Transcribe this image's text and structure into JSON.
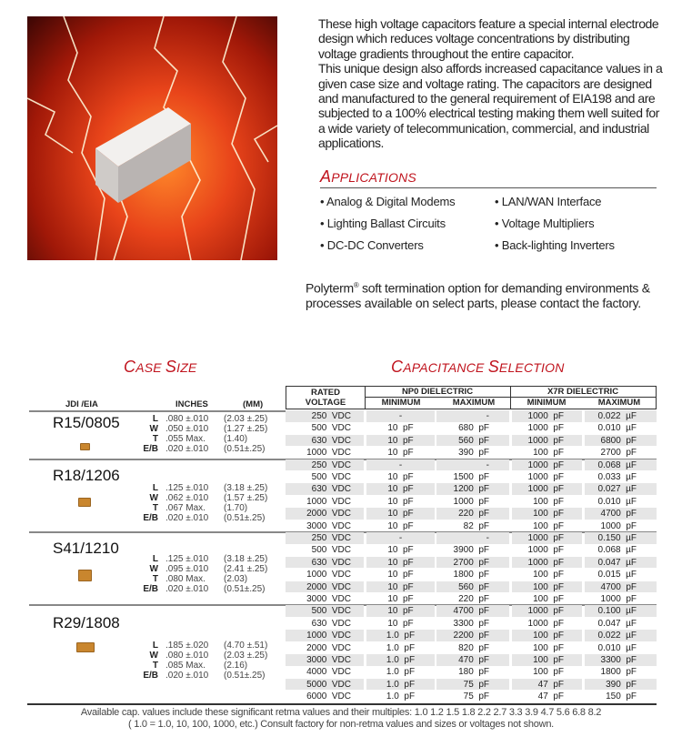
{
  "intro": {
    "paragraph1": "These high voltage capacitors feature a special internal electrode design which reduces voltage concentrations by distributing voltage gradients throughout the entire capacitor.",
    "paragraph2": "This unique design also affords increased capacitance values in a given case size and voltage rating. The capacitors are designed and manufactured to the general requirement of EIA198 and are subjected to a 100% electrical testing making them well suited for a wide variety of telecommunication, commercial, and industrial applications."
  },
  "applications": {
    "title_first": "A",
    "title_rest": "PPLICATIONS",
    "items": [
      "Analog & Digital Modems",
      "LAN/WAN Interface",
      "Lighting Ballast Circuits",
      "Voltage Multipliers",
      "DC-DC Converters",
      "Back-lighting Inverters"
    ]
  },
  "polyterm": {
    "brand": "Polyterm",
    "reg": "®",
    "text": " soft termination option for demanding environments & processes available on select parts, please contact the factory."
  },
  "case_size": {
    "title_a": "C",
    "title_b": "ASE ",
    "title_c": "S",
    "title_d": "IZE",
    "col_jdi": "JDI /EIA",
    "col_inches": "INCHES",
    "col_mm": "(MM)"
  },
  "cap_selection": {
    "title_a": "C",
    "title_b": "APACITANCE ",
    "title_c": "S",
    "title_d": "ELECTION",
    "col_rated": "RATED",
    "col_voltage": "VOLTAGE",
    "np0": "NP0 DIELECTRIC",
    "x7r": "X7R DIELECTRIC",
    "min": "MINIMUM",
    "max": "MAXIMUM"
  },
  "colors": {
    "accent_red": "#c0141e",
    "chip": "#c9862e",
    "row_shade": "#e6e6e6"
  },
  "groups": [
    {
      "name": "R15/0805",
      "dims": [
        [
          "L",
          ".080 ±.010",
          "(2.03 ±.25)"
        ],
        [
          "W",
          ".050 ±.010",
          "(1.27 ±.25)"
        ],
        [
          "T",
          ".055 Max.",
          "(1.40)"
        ],
        [
          "E/B",
          ".020 ±.010",
          "(0.51±.25)"
        ]
      ],
      "rows": [
        [
          "250  VDC",
          "-",
          "-",
          "1000  pF",
          "0.022  µF"
        ],
        [
          "500  VDC",
          "10  pF",
          "680  pF",
          "1000  pF",
          "0.010  µF"
        ],
        [
          "630  VDC",
          "10  pF",
          "560  pF",
          "1000  pF",
          "6800  pF"
        ],
        [
          "1000  VDC",
          "10  pF",
          "390  pF",
          "100  pF",
          "2700  pF"
        ]
      ]
    },
    {
      "name": "R18/1206",
      "dims": [
        [
          "L",
          ".125 ±.010",
          "(3.18 ±.25)"
        ],
        [
          "W",
          ".062 ±.010",
          "(1.57 ±.25)"
        ],
        [
          "T",
          ".067 Max.",
          "(1.70)"
        ],
        [
          "E/B",
          ".020 ±.010",
          "(0.51±.25)"
        ]
      ],
      "rows": [
        [
          "250  VDC",
          "-",
          "-",
          "1000  pF",
          "0.068  µF"
        ],
        [
          "500  VDC",
          "10  pF",
          "1500  pF",
          "1000  pF",
          "0.033  µF"
        ],
        [
          "630  VDC",
          "10  pF",
          "1200  pF",
          "1000  pF",
          "0.027  µF"
        ],
        [
          "1000  VDC",
          "10  pF",
          "1000  pF",
          "100  pF",
          "0.010  µF"
        ],
        [
          "2000  VDC",
          "10  pF",
          "220  pF",
          "100  pF",
          "4700  pF"
        ],
        [
          "3000  VDC",
          "10  pF",
          "82  pF",
          "100  pF",
          "1000  pF"
        ]
      ]
    },
    {
      "name": "S41/1210",
      "dims": [
        [
          "L",
          ".125 ±.010",
          "(3.18 ±.25)"
        ],
        [
          "W",
          ".095 ±.010",
          "(2.41 ±.25)"
        ],
        [
          "T",
          ".080 Max.",
          "(2.03)"
        ],
        [
          "E/B",
          ".020 ±.010",
          "(0.51±.25)"
        ]
      ],
      "rows": [
        [
          "250  VDC",
          "-",
          "-",
          "1000  pF",
          "0.150  µF"
        ],
        [
          "500  VDC",
          "10  pF",
          "3900  pF",
          "1000  pF",
          "0.068  µF"
        ],
        [
          "630  VDC",
          "10  pF",
          "2700  pF",
          "1000  pF",
          "0.047  µF"
        ],
        [
          "1000  VDC",
          "10  pF",
          "1800  pF",
          "100  pF",
          "0.015  µF"
        ],
        [
          "2000  VDC",
          "10  pF",
          "560  pF",
          "100  pF",
          "4700  pF"
        ],
        [
          "3000  VDC",
          "10  pF",
          "220  pF",
          "100  pF",
          "1000  pF"
        ]
      ]
    },
    {
      "name": "R29/1808",
      "dims": [
        [
          "L",
          ".185 ±.020",
          "(4.70 ±.51)"
        ],
        [
          "W",
          ".080 ±.010",
          "(2.03 ±.25)"
        ],
        [
          "T",
          ".085 Max.",
          "(2.16)"
        ],
        [
          "E/B",
          ".020 ±.010",
          "(0.51±.25)"
        ]
      ],
      "rows": [
        [
          "500  VDC",
          "10  pF",
          "4700  pF",
          "1000  pF",
          "0.100  µF"
        ],
        [
          "630  VDC",
          "10  pF",
          "3300  pF",
          "1000  pF",
          "0.047  µF"
        ],
        [
          "1000  VDC",
          "1.0  pF",
          "2200  pF",
          "100  pF",
          "0.022  µF"
        ],
        [
          "2000  VDC",
          "1.0  pF",
          "820  pF",
          "100  pF",
          "0.010  µF"
        ],
        [
          "3000  VDC",
          "1.0  pF",
          "470  pF",
          "100  pF",
          "3300  pF"
        ],
        [
          "4000  VDC",
          "1.0  pF",
          "180  pF",
          "100  pF",
          "1800  pF"
        ],
        [
          "5000  VDC",
          "1.0  pF",
          "75  pF",
          "47  pF",
          "390  pF"
        ],
        [
          "6000  VDC",
          "1.0  pF",
          "75  pF",
          "47  pF",
          "150  pF"
        ]
      ]
    }
  ],
  "footnote": {
    "line1": "Available cap. values include these significant retma values and their multiples:  1.0  1.2  1.5  1.8  2.2  2.7  3.3  3.9  4.7  5.6  6.8  8.2",
    "line2": "( 1.0 = 1.0, 10, 100, 1000, etc.)    Consult factory for non-retma values and sizes or voltages not shown."
  }
}
